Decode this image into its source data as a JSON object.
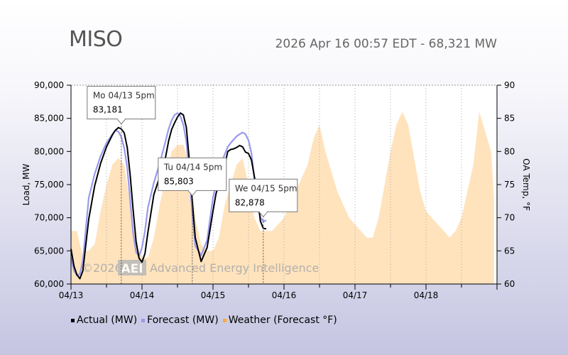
{
  "header": {
    "title": "MISO",
    "subtitle": "2026 Apr 16 00:57 EDT - 68,321 MW"
  },
  "watermark": {
    "copyright": "©2026",
    "logo": "AEI",
    "company": "Advanced Energy Intelligence"
  },
  "chart_data": {
    "type": "line",
    "title": "",
    "xlabel": "",
    "ylabel": "Load, MW",
    "y2label": "OA Temp, °F",
    "ylim": [
      60000,
      90000
    ],
    "y2lim": [
      60,
      90
    ],
    "yticks": [
      60000,
      65000,
      70000,
      75000,
      80000,
      85000,
      90000
    ],
    "ytick_labels": [
      "60,000",
      "65,000",
      "70,000",
      "75,000",
      "80,000",
      "85,000",
      "90,000"
    ],
    "y2ticks": [
      60,
      65,
      70,
      75,
      80,
      85,
      90
    ],
    "x_unit": "hours since 04/13 00:00",
    "xlim": [
      0,
      144
    ],
    "xticks": [
      0,
      24,
      48,
      72,
      96,
      120
    ],
    "xtick_labels": [
      "04/13",
      "04/14",
      "04/15",
      "04/16",
      "04/17",
      "04/18"
    ],
    "grid": "vertical dotted lines every 12 hours",
    "legend": "bottom-left",
    "colors": {
      "actual": "#000000",
      "forecast": "#9999ee",
      "weather": "#ffe3bd",
      "weather_legend": "#ffaa33"
    },
    "series": [
      {
        "name": "Actual (MW)",
        "axis": "left",
        "x": [
          0,
          1,
          2,
          3,
          4,
          6,
          8,
          10,
          12,
          14,
          15,
          16,
          17,
          18,
          19,
          20,
          21,
          22,
          23,
          24,
          25,
          26,
          28,
          30,
          32,
          33,
          34,
          35,
          36,
          37,
          38,
          39,
          40,
          41,
          42,
          44,
          46,
          48,
          49,
          50,
          51,
          52,
          53,
          54,
          55,
          56,
          57,
          58,
          59,
          60,
          61,
          62,
          63,
          64,
          65,
          66,
          67,
          68,
          70,
          72
        ],
        "values": [
          65300,
          62700,
          61400,
          60800,
          62000,
          69800,
          74800,
          78200,
          80700,
          82500,
          83200,
          83600,
          83400,
          82800,
          80600,
          76500,
          71200,
          66400,
          63900,
          63300,
          64600,
          67800,
          73500,
          76200,
          79200,
          81600,
          83300,
          84300,
          85200,
          85803,
          85500,
          83600,
          78600,
          72600,
          67000,
          63400,
          65500,
          71000,
          73600,
          75200,
          76600,
          78000,
          80000,
          80300,
          80400,
          80600,
          80900,
          80700,
          79900,
          79700,
          78700,
          76200,
          73500,
          69500,
          68400,
          68321,
          null,
          null,
          null,
          null
        ]
      },
      {
        "name": "Forecast (MW)",
        "axis": "left",
        "x": [
          0,
          1,
          2,
          3,
          4,
          6,
          8,
          10,
          12,
          14,
          15,
          16,
          17,
          18,
          19,
          20,
          21,
          22,
          23,
          24,
          25,
          26,
          28,
          30,
          32,
          33,
          34,
          35,
          36,
          37,
          38,
          39,
          40,
          41,
          42,
          44,
          46,
          48,
          49,
          50,
          51,
          52,
          53,
          54,
          55,
          56,
          57,
          58,
          59,
          60,
          61,
          62,
          63,
          64,
          65,
          66,
          67,
          68,
          70,
          72
        ],
        "values": [
          64000,
          62000,
          61300,
          61500,
          63500,
          73000,
          76600,
          79300,
          81300,
          82600,
          83181,
          83000,
          82200,
          80500,
          77600,
          72700,
          67700,
          64800,
          64200,
          65500,
          68000,
          71500,
          75300,
          78200,
          81600,
          83400,
          84700,
          85500,
          85803,
          85300,
          84000,
          81500,
          76600,
          70700,
          65800,
          64300,
          66600,
          73000,
          75000,
          77000,
          78500,
          79600,
          80700,
          81300,
          81800,
          82300,
          82600,
          82878,
          82600,
          81700,
          79700,
          75800,
          72100,
          70100,
          69400,
          69600,
          null,
          null,
          null,
          null
        ]
      },
      {
        "name": "Weather (Forecast °F)",
        "axis": "right",
        "x": [
          0,
          2,
          4,
          5,
          6,
          8,
          10,
          12,
          14,
          16,
          18,
          20,
          22,
          24,
          26,
          28,
          30,
          32,
          34,
          36,
          38,
          40,
          42,
          44,
          46,
          48,
          50,
          52,
          54,
          56,
          58,
          60,
          62,
          64,
          66,
          68,
          70,
          72,
          74,
          76,
          78,
          80,
          82,
          84,
          86,
          88,
          90,
          92,
          94,
          96,
          98,
          100,
          102,
          104,
          106,
          108,
          110,
          112,
          114,
          116,
          118,
          120,
          122,
          124,
          126,
          128,
          130,
          132,
          134,
          136,
          138,
          140,
          142,
          143
        ],
        "values": [
          68,
          68,
          64,
          65,
          65,
          66,
          71,
          75,
          78,
          79,
          78,
          72,
          66,
          64,
          64,
          67,
          72,
          76,
          80,
          81,
          81,
          78,
          70,
          66,
          65,
          65,
          67,
          72,
          75,
          78,
          79,
          75,
          70,
          68,
          68,
          68,
          69,
          70,
          72,
          74,
          76,
          78,
          82,
          84,
          80,
          77,
          74,
          72,
          70,
          69,
          68,
          67,
          67,
          70,
          75,
          80,
          84,
          86,
          84,
          79,
          74,
          71,
          70,
          69,
          68,
          67,
          68,
          70,
          74,
          78,
          86,
          83,
          80,
          73
        ]
      }
    ],
    "annotations": [
      {
        "label": "Mo 04/13 5pm",
        "value": "83,181",
        "x": 17
      },
      {
        "label": "Tu 04/14 5pm",
        "value": "85,803",
        "x": 41
      },
      {
        "label": "We 04/15 5pm",
        "value": "82,878",
        "x": 65
      }
    ]
  },
  "legend": {
    "items": [
      {
        "label": "Actual (MW)",
        "color": "#000000"
      },
      {
        "label": "Forecast (MW)",
        "color": "#9999ee"
      },
      {
        "label": "Weather (Forecast °F)",
        "color": "#ffaa33"
      }
    ]
  }
}
